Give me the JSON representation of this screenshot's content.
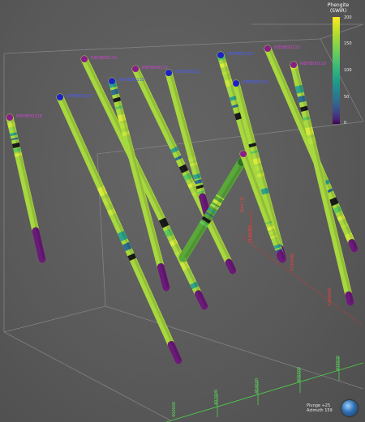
{
  "legend": {
    "title": "Phengite\n(SWIR)",
    "ticks": [
      "200",
      "150",
      "100",
      "50",
      "0"
    ],
    "colors": [
      "#fde725",
      "#6ece58",
      "#1f9e89",
      "#31688e",
      "#440154"
    ]
  },
  "hole_labels": [
    "RIEHBO0118",
    "RIEHBO0127",
    "RIEHBO0110",
    "RIEHBO0115",
    "RIEHBO0113",
    "RIEHBO0122",
    "RIEHBO0120",
    "RIEHBO0113",
    "RIEHBO0115",
    "RIEHBO0119"
  ],
  "axes": {
    "red_ticks": [
      "East (X)",
      "7100000",
      "7150000",
      "7200000"
    ],
    "green_ticks": [
      "400000",
      "402000",
      "404000",
      "406000",
      "408000"
    ]
  },
  "view": {
    "plunge": "Plunge +25",
    "azimuth": "Azimuth 159"
  },
  "icons": {
    "orientation": "globe-icon"
  }
}
